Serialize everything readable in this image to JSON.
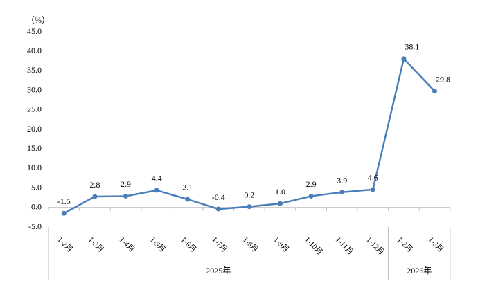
{
  "chart_data": {
    "type": "line",
    "unit_label": "（%）",
    "categories": [
      "1-2月",
      "1-3月",
      "1-4月",
      "1-5月",
      "1-6月",
      "1-7月",
      "1-8月",
      "1-9月",
      "1-10月",
      "1-11月",
      "1-12月",
      "1-2月",
      "1-3月"
    ],
    "groups": [
      "2025年",
      "2026年"
    ],
    "values": [
      -1.5,
      2.8,
      2.9,
      4.4,
      2.1,
      -0.4,
      0.2,
      1.0,
      2.9,
      3.9,
      4.6,
      38.1,
      29.8
    ],
    "value_labels": [
      "-1.5",
      "2.8",
      "2.9",
      "4.4",
      "2.1",
      "-0.4",
      "0.2",
      "1.0",
      "2.9",
      "3.9",
      "4.6",
      "38.1",
      "29.8"
    ],
    "color": "#4a7ebb",
    "ylim": [
      -5,
      45
    ],
    "yticks": [
      {
        "value": -5,
        "label": "-5.0"
      },
      {
        "value": 0,
        "label": "0.0"
      },
      {
        "value": 5,
        "label": "5.0"
      },
      {
        "value": 10,
        "label": "10.0"
      },
      {
        "value": 15,
        "label": "15.0"
      },
      {
        "value": 20,
        "label": "20.0"
      },
      {
        "value": 25,
        "label": "25.0"
      },
      {
        "value": 30,
        "label": "30.0"
      },
      {
        "value": 35,
        "label": "35.0"
      },
      {
        "value": 40,
        "label": "40.0"
      },
      {
        "value": 45,
        "label": "45.0"
      }
    ],
    "grid": false
  }
}
